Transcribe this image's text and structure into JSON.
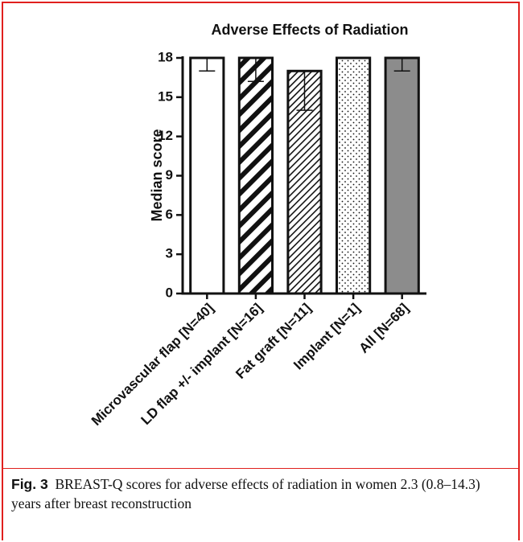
{
  "chart_data": {
    "type": "bar",
    "title": "Adverse Effects of Radiation",
    "y_label": "Median score",
    "categories": [
      "Microvascular flap [N=40]",
      "LD flap +/- implant [N=16]",
      "Fat graft [N=11]",
      "Implant [N=1]",
      "All [N=68]"
    ],
    "values": [
      18,
      18,
      17,
      18,
      18
    ],
    "errors": [
      1,
      1.8,
      3,
      0,
      1
    ],
    "colors": [
      "#ffffff",
      "#ffffff",
      "#ffffff",
      "#ffffff",
      "#8c8c8c"
    ],
    "fills": [
      "solid",
      "thick-stripes",
      "thin-stripes",
      "dots",
      "solid"
    ],
    "ylim": [
      0,
      18
    ],
    "yticks": [
      0,
      3,
      6,
      9,
      12,
      15,
      18
    ]
  },
  "caption": {
    "label": "Fig. 3",
    "text": "BREAST-Q scores for adverse effects of radiation in women 2.3 (0.8–14.3) years after breast reconstruction"
  }
}
